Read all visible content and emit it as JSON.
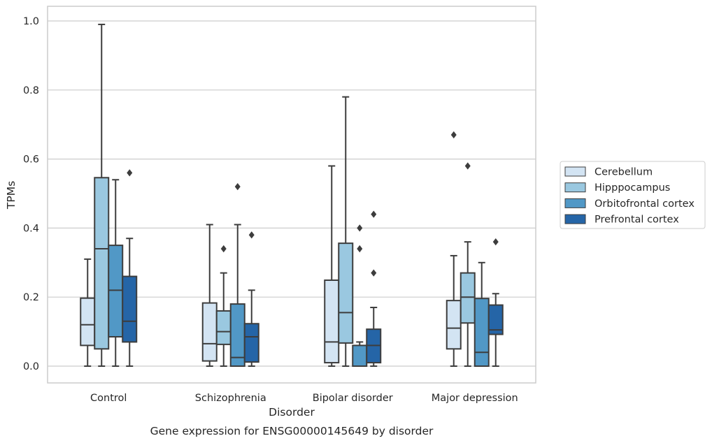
{
  "chart_data": {
    "type": "box",
    "caption": "Gene expression for ENSG00000145649 by disorder",
    "xlabel": "Disorder",
    "ylabel": "TPMs",
    "ylim": [
      -0.05,
      1.04
    ],
    "yticks": [
      0.0,
      0.2,
      0.4,
      0.6,
      0.8,
      1.0
    ],
    "ytick_labels": [
      "0.0",
      "0.2",
      "0.4",
      "0.6",
      "0.8",
      "1.0"
    ],
    "grid": "horizontal",
    "legend_position": "right",
    "categories": [
      "Control",
      "Schizophrenia",
      "Bipolar disorder",
      "Major depression"
    ],
    "series": [
      {
        "name": "Cerebellum",
        "color": "#d3e4f3",
        "boxes": [
          {
            "whislo": 0.0,
            "q1": 0.06,
            "med": 0.12,
            "q3": 0.197,
            "whishi": 0.31,
            "fliers": []
          },
          {
            "whislo": 0.0,
            "q1": 0.015,
            "med": 0.065,
            "q3": 0.183,
            "whishi": 0.41,
            "fliers": []
          },
          {
            "whislo": 0.0,
            "q1": 0.01,
            "med": 0.07,
            "q3": 0.249,
            "whishi": 0.58,
            "fliers": []
          },
          {
            "whislo": 0.0,
            "q1": 0.05,
            "med": 0.11,
            "q3": 0.19,
            "whishi": 0.32,
            "fliers": [
              0.67
            ]
          }
        ]
      },
      {
        "name": "Hipppocampus",
        "color": "#9ac8e0",
        "boxes": [
          {
            "whislo": 0.0,
            "q1": 0.05,
            "med": 0.34,
            "q3": 0.546,
            "whishi": 0.99,
            "fliers": []
          },
          {
            "whislo": 0.0,
            "q1": 0.063,
            "med": 0.1,
            "q3": 0.16,
            "whishi": 0.27,
            "fliers": [
              0.34
            ]
          },
          {
            "whislo": 0.0,
            "q1": 0.067,
            "med": 0.155,
            "q3": 0.356,
            "whishi": 0.78,
            "fliers": []
          },
          {
            "whislo": 0.0,
            "q1": 0.125,
            "med": 0.2,
            "q3": 0.27,
            "whishi": 0.36,
            "fliers": [
              0.58
            ]
          }
        ]
      },
      {
        "name": "Orbitofrontal cortex",
        "color": "#5198c6",
        "boxes": [
          {
            "whislo": 0.0,
            "q1": 0.085,
            "med": 0.22,
            "q3": 0.35,
            "whishi": 0.54,
            "fliers": []
          },
          {
            "whislo": 0.0,
            "q1": 0.0,
            "med": 0.025,
            "q3": 0.18,
            "whishi": 0.41,
            "fliers": [
              0.52
            ]
          },
          {
            "whislo": 0.0,
            "q1": 0.0,
            "med": 0.0,
            "q3": 0.06,
            "whishi": 0.07,
            "fliers": [
              0.34,
              0.4
            ]
          },
          {
            "whislo": 0.0,
            "q1": 0.0,
            "med": 0.04,
            "q3": 0.196,
            "whishi": 0.3,
            "fliers": []
          }
        ]
      },
      {
        "name": "Prefrontal cortex",
        "color": "#2565a7",
        "boxes": [
          {
            "whislo": 0.0,
            "q1": 0.07,
            "med": 0.13,
            "q3": 0.26,
            "whishi": 0.37,
            "fliers": [
              0.56
            ]
          },
          {
            "whislo": 0.0,
            "q1": 0.012,
            "med": 0.085,
            "q3": 0.123,
            "whishi": 0.22,
            "fliers": [
              0.38
            ]
          },
          {
            "whislo": 0.0,
            "q1": 0.01,
            "med": 0.06,
            "q3": 0.107,
            "whishi": 0.17,
            "fliers": [
              0.27,
              0.44
            ]
          },
          {
            "whislo": 0.0,
            "q1": 0.092,
            "med": 0.105,
            "q3": 0.177,
            "whishi": 0.21,
            "fliers": [
              0.36
            ]
          }
        ]
      }
    ]
  }
}
